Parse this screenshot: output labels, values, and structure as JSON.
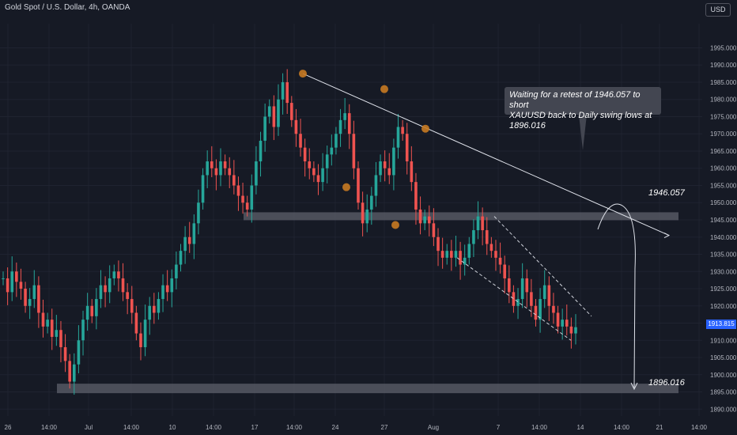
{
  "header": {
    "title": "Gold Spot / U.S. Dollar, 4h, OANDA",
    "currency": "USD"
  },
  "annotation": {
    "line1": "Waiting for a retest of 1946.057 to short",
    "line2": "XAUUSD back to Daily swing lows at 1896.016"
  },
  "levels": {
    "resistance": "1946.057",
    "support": "1896.016"
  },
  "current_price": "1913.815",
  "chart_data": {
    "type": "candlestick",
    "symbol": "XAUUSD",
    "timeframe": "4h",
    "ylim": [
      1888,
      2002
    ],
    "y_ticks": [
      "1890.000",
      "1895.000",
      "1900.000",
      "1905.000",
      "1910.000",
      "1915.000",
      "1920.000",
      "1925.000",
      "1930.000",
      "1935.000",
      "1940.000",
      "1945.000",
      "1950.000",
      "1955.000",
      "1960.000",
      "1965.000",
      "1970.000",
      "1975.000",
      "1980.000",
      "1985.000",
      "1990.000",
      "1995.000"
    ],
    "x_ticks": [
      "26",
      "14:00",
      "Jul",
      "14:00",
      "10",
      "14:00",
      "17",
      "14:00",
      "24",
      "27",
      "Aug",
      "7",
      "14:00",
      "14",
      "14:00",
      "21",
      "14:00"
    ],
    "close_path": [
      1928,
      1924,
      1930,
      1927,
      1925,
      1920,
      1922,
      1926,
      1918,
      1914,
      1916,
      1911,
      1913,
      1908,
      1904,
      1898,
      1903,
      1910,
      1916,
      1920,
      1917,
      1922,
      1926,
      1924,
      1928,
      1930,
      1928,
      1924,
      1922,
      1918,
      1912,
      1908,
      1916,
      1920,
      1918,
      1922,
      1926,
      1924,
      1928,
      1932,
      1936,
      1940,
      1938,
      1944,
      1950,
      1958,
      1962,
      1960,
      1958,
      1962,
      1960,
      1958,
      1955,
      1952,
      1950,
      1948,
      1955,
      1962,
      1968,
      1975,
      1978,
      1972,
      1980,
      1985,
      1979,
      1974,
      1970,
      1966,
      1962,
      1960,
      1958,
      1956,
      1960,
      1964,
      1966,
      1970,
      1974,
      1976,
      1970,
      1960,
      1950,
      1944,
      1948,
      1952,
      1958,
      1962,
      1960,
      1958,
      1966,
      1972,
      1970,
      1962,
      1956,
      1948,
      1944,
      1946,
      1944,
      1940,
      1936,
      1934,
      1936,
      1934,
      1936,
      1932,
      1934,
      1938,
      1942,
      1946,
      1942,
      1938,
      1936,
      1934,
      1932,
      1928,
      1924,
      1920,
      1922,
      1928,
      1924,
      1920,
      1916,
      1922,
      1926,
      1920,
      1918,
      1914,
      1916,
      1914,
      1912,
      1913.815
    ],
    "levels": [
      1946.057,
      1896.016
    ],
    "swing_highs": [
      1987.5,
      1983,
      1971.5
    ],
    "swing_lows": [
      1954.5,
      1943.5
    ]
  }
}
